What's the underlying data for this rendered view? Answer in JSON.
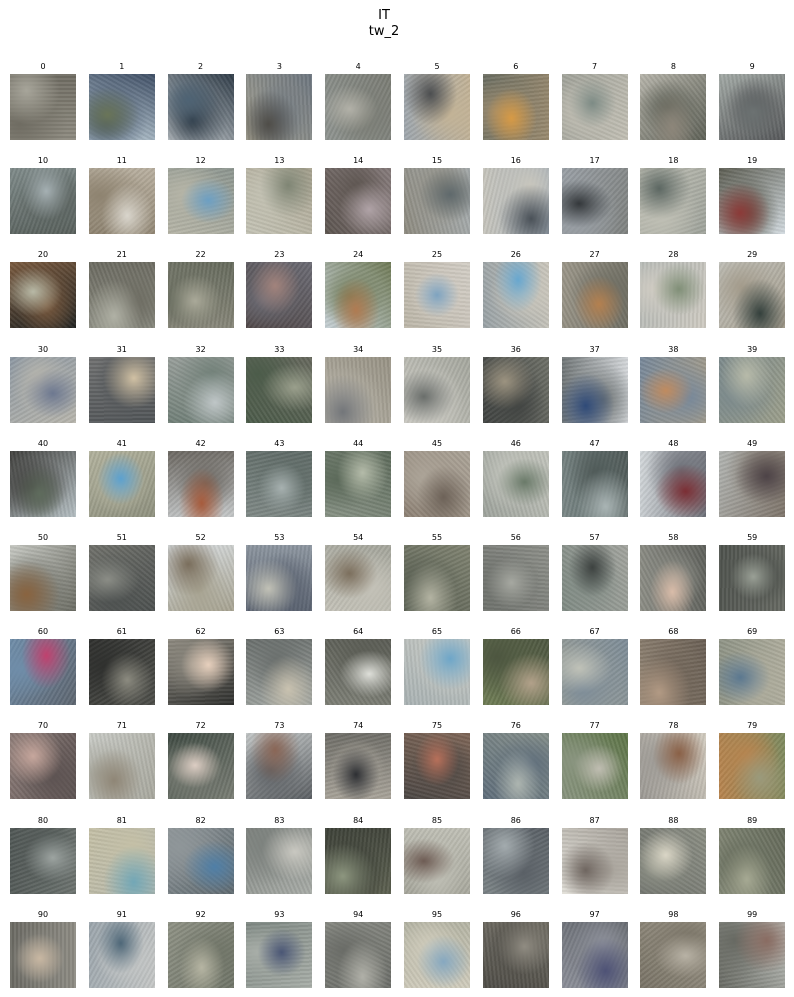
{
  "figure": {
    "title": "IT",
    "subtitle": "tw_2"
  },
  "images": [
    {
      "label": "0",
      "palette": [
        "#8d8a7f",
        "#a7a59a",
        "#6f6c62"
      ]
    },
    {
      "label": "1",
      "palette": [
        "#bfcfd8",
        "#6a7558",
        "#3f4f66"
      ]
    },
    {
      "label": "2",
      "palette": [
        "#c9ced1",
        "#4e6374",
        "#2e3b47"
      ]
    },
    {
      "label": "3",
      "palette": [
        "#a3a090",
        "#4f4d48",
        "#6d7680"
      ]
    },
    {
      "label": "4",
      "palette": [
        "#8f9490",
        "#b2b1a8",
        "#7a7c74"
      ]
    },
    {
      "label": "5",
      "palette": [
        "#9fa7ae",
        "#4c4e50",
        "#c3b396"
      ]
    },
    {
      "label": "6",
      "palette": [
        "#6b6e62",
        "#d79a45",
        "#9a8a6e"
      ]
    },
    {
      "label": "7",
      "palette": [
        "#a1a39a",
        "#7d8b85",
        "#c3c0b5"
      ]
    },
    {
      "label": "8",
      "palette": [
        "#b6b4aa",
        "#8d867a",
        "#5e6157"
      ]
    },
    {
      "label": "9",
      "palette": [
        "#a3aaa6",
        "#6c7272",
        "#56585a"
      ]
    },
    {
      "label": "10",
      "palette": [
        "#7f8b8a",
        "#a5b0b3",
        "#58605c"
      ]
    },
    {
      "label": "11",
      "palette": [
        "#b9b0a0",
        "#d9d5cc",
        "#8e8370"
      ]
    },
    {
      "label": "12",
      "palette": [
        "#8d9690",
        "#6c9fc3",
        "#b6b5a7"
      ]
    },
    {
      "label": "13",
      "palette": [
        "#aca693",
        "#7f8574",
        "#c5c4b6"
      ]
    },
    {
      "label": "14",
      "palette": [
        "#857a7a",
        "#b0a3a7",
        "#5d5550"
      ]
    },
    {
      "label": "15",
      "palette": [
        "#a9b0b3",
        "#5f696c",
        "#8e8b80"
      ]
    },
    {
      "label": "16",
      "palette": [
        "#a2adb8",
        "#4a5158",
        "#c8c6bd"
      ]
    },
    {
      "label": "17",
      "palette": [
        "#7f8280",
        "#34383b",
        "#9aa0a6"
      ]
    },
    {
      "label": "18",
      "palette": [
        "#9fa39b",
        "#5c6762",
        "#c0c0b5"
      ]
    },
    {
      "label": "19",
      "palette": [
        "#d3dbe0",
        "#8c3a38",
        "#5c5d52"
      ]
    },
    {
      "label": "20",
      "palette": [
        "#222422",
        "#b8b9a6",
        "#7a5a3f"
      ]
    },
    {
      "label": "21",
      "palette": [
        "#8a8b80",
        "#b0b1a5",
        "#6c6b61"
      ]
    },
    {
      "label": "22",
      "palette": [
        "#8e8c7f",
        "#aaa999",
        "#656a5c"
      ]
    },
    {
      "label": "23",
      "palette": [
        "#4f4646",
        "#a2837c",
        "#6b6b74"
      ]
    },
    {
      "label": "24",
      "palette": [
        "#c6d0d5",
        "#b07b52",
        "#6f7a56"
      ]
    },
    {
      "label": "25",
      "palette": [
        "#bdb7a9",
        "#7ea3c0",
        "#d3cec6"
      ]
    },
    {
      "label": "26",
      "palette": [
        "#99a2a6",
        "#68a7cf",
        "#cbc7bc"
      ]
    },
    {
      "label": "27",
      "palette": [
        "#9c978a",
        "#b4804f",
        "#6f6e63"
      ]
    },
    {
      "label": "28",
      "palette": [
        "#b3b8b5",
        "#808f77",
        "#cfcbc2"
      ]
    },
    {
      "label": "29",
      "palette": [
        "#c5c6c0",
        "#34403c",
        "#a39b8b"
      ]
    },
    {
      "label": "30",
      "palette": [
        "#8d98a3",
        "#6d7890",
        "#b8b6ad"
      ]
    },
    {
      "label": "31",
      "palette": [
        "#6f7070",
        "#d1c1a4",
        "#505457"
      ]
    },
    {
      "label": "32",
      "palette": [
        "#9aa09c",
        "#bfc6c7",
        "#718078"
      ]
    },
    {
      "label": "33",
      "palette": [
        "#66685d",
        "#9a9f8c",
        "#4c5c4a"
      ]
    },
    {
      "label": "34",
      "palette": [
        "#989385",
        "#73767a",
        "#b5b1a6"
      ]
    },
    {
      "label": "35",
      "palette": [
        "#a5a79e",
        "#6a6e6b",
        "#c9c8c1"
      ]
    },
    {
      "label": "36",
      "palette": [
        "#6d6f67",
        "#9c9380",
        "#3f4240"
      ]
    },
    {
      "label": "37",
      "palette": [
        "#d5d8db",
        "#2f4a78",
        "#6f7576"
      ]
    },
    {
      "label": "38",
      "palette": [
        "#a89e89",
        "#c08b5f",
        "#77889a"
      ]
    },
    {
      "label": "39",
      "palette": [
        "#9c9f8b",
        "#b7baa9",
        "#7c8a8c"
      ]
    },
    {
      "label": "40",
      "palette": [
        "#b6c0c4",
        "#5f6c5d",
        "#3f3f3c"
      ]
    },
    {
      "label": "41",
      "palette": [
        "#8f917f",
        "#5ca1cf",
        "#b2b29d"
      ]
    },
    {
      "label": "42",
      "palette": [
        "#c5c8c9",
        "#a75b3c",
        "#6b6761"
      ]
    },
    {
      "label": "43",
      "palette": [
        "#7f8986",
        "#a7b1b0",
        "#5f6b67"
      ]
    },
    {
      "label": "44",
      "palette": [
        "#889285",
        "#b4bba9",
        "#5c6a5a"
      ]
    },
    {
      "label": "45",
      "palette": [
        "#8e8275",
        "#6d6258",
        "#aca498"
      ]
    },
    {
      "label": "46",
      "palette": [
        "#9fa49d",
        "#6a7a69",
        "#c2c4bc"
      ]
    },
    {
      "label": "47",
      "palette": [
        "#7b8887",
        "#a9b4b4",
        "#4f5a58"
      ]
    },
    {
      "label": "48",
      "palette": [
        "#d4d9dc",
        "#7b2e34",
        "#6d7078"
      ]
    },
    {
      "label": "49",
      "palette": [
        "#b2b5b2",
        "#4d4347",
        "#7d7369"
      ]
    },
    {
      "label": "50",
      "palette": [
        "#c6c8c2",
        "#8a6440",
        "#6b6c63"
      ]
    },
    {
      "label": "51",
      "palette": [
        "#6f706a",
        "#8b8d86",
        "#4c504f"
      ]
    },
    {
      "label": "52",
      "palette": [
        "#d8dde0",
        "#7a6e5c",
        "#a7a391"
      ]
    },
    {
      "label": "53",
      "palette": [
        "#8d96a0",
        "#c1c1b6",
        "#5a6270"
      ]
    },
    {
      "label": "54",
      "palette": [
        "#a5a69c",
        "#7c6f5d",
        "#c4c2b8"
      ]
    },
    {
      "label": "55",
      "palette": [
        "#7f8270",
        "#b3b3a2",
        "#5c6255"
      ]
    },
    {
      "label": "56",
      "palette": [
        "#8d8f89",
        "#a6a8a1",
        "#6f726d"
      ]
    },
    {
      "label": "57",
      "palette": [
        "#a2a49e",
        "#3d4240",
        "#808b84"
      ]
    },
    {
      "label": "58",
      "palette": [
        "#5f615c",
        "#d9bca9",
        "#8d8e86"
      ]
    },
    {
      "label": "59",
      "palette": [
        "#666962",
        "#9aa096",
        "#4e524d"
      ]
    },
    {
      "label": "60",
      "palette": [
        "#5e6670",
        "#c0416e",
        "#6f8da9"
      ]
    },
    {
      "label": "61",
      "palette": [
        "#4d4e49",
        "#8c8b80",
        "#2f302e"
      ]
    },
    {
      "label": "62",
      "palette": [
        "#2e2f2d",
        "#e7d0bd",
        "#8e8a80"
      ]
    },
    {
      "label": "63",
      "palette": [
        "#9fa4a0",
        "#c9c2b0",
        "#6a6f6d"
      ]
    },
    {
      "label": "64",
      "palette": [
        "#7d7f76",
        "#dedfd9",
        "#5b5d55"
      ]
    },
    {
      "label": "65",
      "palette": [
        "#aab3b4",
        "#6ea6c8",
        "#c5c8c3"
      ]
    },
    {
      "label": "66",
      "palette": [
        "#6f7d55",
        "#b2a18a",
        "#4d5640"
      ]
    },
    {
      "label": "67",
      "palette": [
        "#9ea299",
        "#c0c2b8",
        "#7d8c98"
      ]
    },
    {
      "label": "68",
      "palette": [
        "#8f8272",
        "#b29a84",
        "#6a5f54"
      ]
    },
    {
      "label": "69",
      "palette": [
        "#8f9486",
        "#5b7890",
        "#b0ae9e"
      ]
    },
    {
      "label": "70",
      "palette": [
        "#8a7a76",
        "#c7a79d",
        "#5d5352"
      ]
    },
    {
      "label": "71",
      "palette": [
        "#c9cbc6",
        "#8f8676",
        "#a8a89e"
      ]
    },
    {
      "label": "72",
      "palette": [
        "#3d4941",
        "#dccdc3",
        "#7a7e75"
      ]
    },
    {
      "label": "73",
      "palette": [
        "#c2c6c6",
        "#8a6656",
        "#5b5f63"
      ]
    },
    {
      "label": "74",
      "palette": [
        "#6e6d67",
        "#2d2f33",
        "#a9a49a"
      ]
    },
    {
      "label": "75",
      "palette": [
        "#7e6657",
        "#b7705a",
        "#4c4744"
      ]
    },
    {
      "label": "76",
      "palette": [
        "#86908b",
        "#adb5b0",
        "#5f6e7b"
      ]
    },
    {
      "label": "77",
      "palette": [
        "#5e7548",
        "#bfbdb1",
        "#8a9580"
      ]
    },
    {
      "label": "78",
      "palette": [
        "#d2ccc0",
        "#8a6046",
        "#9c9994"
      ]
    },
    {
      "label": "79",
      "palette": [
        "#7e8b60",
        "#9a9a7c",
        "#b9844e"
      ]
    },
    {
      "label": "80",
      "palette": [
        "#6c736f",
        "#9da4a1",
        "#4f5654"
      ]
    },
    {
      "label": "81",
      "palette": [
        "#b4b7ad",
        "#72a7b6",
        "#c5c0a6"
      ]
    },
    {
      "label": "82",
      "palette": [
        "#5f6a70",
        "#4f7fa7",
        "#8f9699"
      ]
    },
    {
      "label": "83",
      "palette": [
        "#a8aca7",
        "#c9c8c1",
        "#7d827e"
      ]
    },
    {
      "label": "84",
      "palette": [
        "#5c6050",
        "#8d967f",
        "#3d4138"
      ]
    },
    {
      "label": "85",
      "palette": [
        "#a7a79c",
        "#6e5c54",
        "#c0c0b6"
      ]
    },
    {
      "label": "86",
      "palette": [
        "#7a8285",
        "#a3abae",
        "#5a6066"
      ]
    },
    {
      "label": "87",
      "palette": [
        "#e1dfd8",
        "#6f6660",
        "#a8a39b"
      ]
    },
    {
      "label": "88",
      "palette": [
        "#6c6f6a",
        "#dad6c6",
        "#8c8f84"
      ]
    },
    {
      "label": "89",
      "palette": [
        "#858a78",
        "#a6a993",
        "#646a5a"
      ]
    },
    {
      "label": "90",
      "palette": [
        "#6b6a63",
        "#c8b7a2",
        "#8e8c84"
      ]
    },
    {
      "label": "91",
      "palette": [
        "#9ba5ac",
        "#4e6778",
        "#c6c8c7"
      ]
    },
    {
      "label": "92",
      "palette": [
        "#8e9184",
        "#b6b5a3",
        "#6f7467"
      ]
    },
    {
      "label": "93",
      "palette": [
        "#7b8580",
        "#4a5675",
        "#a8aea8"
      ]
    },
    {
      "label": "94",
      "palette": [
        "#898b84",
        "#b0b0a8",
        "#6a6c67"
      ]
    },
    {
      "label": "95",
      "palette": [
        "#b3b3a3",
        "#86a8c0",
        "#d0ccbc"
      ]
    },
    {
      "label": "96",
      "palette": [
        "#6f6c63",
        "#908c82",
        "#4f4d47"
      ]
    },
    {
      "label": "97",
      "palette": [
        "#61656a",
        "#4e5276",
        "#8d909a"
      ]
    },
    {
      "label": "98",
      "palette": [
        "#9c9688",
        "#b8b2a5",
        "#787265"
      ]
    },
    {
      "label": "99",
      "palette": [
        "#bcbfba",
        "#8a6c62",
        "#676962"
      ]
    }
  ]
}
